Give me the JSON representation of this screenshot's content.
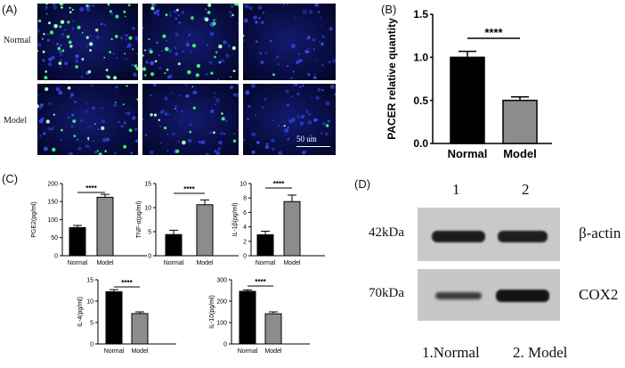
{
  "panels": {
    "a": {
      "label": "(A)",
      "rows": [
        "Normal",
        "Model"
      ],
      "scale_bar": "50 um"
    },
    "b": {
      "label": "(B)"
    },
    "c": {
      "label": "(C)"
    },
    "d": {
      "label": "(D)",
      "lanes": [
        "1",
        "2"
      ],
      "bands": [
        {
          "weight": "42kDa",
          "protein": "β-actin"
        },
        {
          "weight": "70kDa",
          "protein": "COX2"
        }
      ],
      "legend": [
        "1.Normal",
        "2. Model"
      ]
    }
  },
  "chart_data": [
    {
      "type": "bar",
      "categories": [
        "Normal",
        "Model"
      ],
      "values": [
        1.0,
        0.5
      ],
      "errors": [
        0.07,
        0.04
      ],
      "ylabel": "PACER relative quantity",
      "ylim": [
        0,
        1.5
      ],
      "yticks": [
        "0.0",
        "0.5",
        "1.0",
        "1.5"
      ],
      "significance": "****",
      "colors": [
        "#000000",
        "#8c8c8c"
      ]
    },
    {
      "type": "bar",
      "categories": [
        "Normal",
        "Model"
      ],
      "values": [
        78,
        162
      ],
      "errors": [
        6,
        8
      ],
      "ylabel": "PGE2(pg/ml)",
      "ylim": [
        0,
        200
      ],
      "yticks": [
        "0",
        "50",
        "100",
        "150",
        "200"
      ],
      "significance": "****",
      "colors": [
        "#000000",
        "#8c8c8c"
      ]
    },
    {
      "type": "bar",
      "categories": [
        "Normal",
        "Model"
      ],
      "values": [
        4.4,
        10.6
      ],
      "errors": [
        0.9,
        1.0
      ],
      "ylabel": "TNF-α(pg/ml)",
      "ylim": [
        0,
        15
      ],
      "yticks": [
        "0",
        "5",
        "10",
        "15"
      ],
      "significance": "****",
      "colors": [
        "#000000",
        "#8c8c8c"
      ]
    },
    {
      "type": "bar",
      "categories": [
        "Normal",
        "Model"
      ],
      "values": [
        2.9,
        7.5
      ],
      "errors": [
        0.5,
        0.9
      ],
      "ylabel": "IL-1β(pg/ml)",
      "ylim": [
        0,
        10
      ],
      "yticks": [
        "0",
        "2",
        "4",
        "6",
        "8",
        "10"
      ],
      "significance": "****",
      "colors": [
        "#000000",
        "#8c8c8c"
      ]
    },
    {
      "type": "bar",
      "categories": [
        "Normal",
        "Model"
      ],
      "values": [
        12.2,
        7.1
      ],
      "errors": [
        0.5,
        0.4
      ],
      "ylabel": "IL-4(pg/ml)",
      "ylim": [
        0,
        15
      ],
      "yticks": [
        "0",
        "5",
        "10",
        "15"
      ],
      "significance": "****",
      "colors": [
        "#000000",
        "#8c8c8c"
      ]
    },
    {
      "type": "bar",
      "categories": [
        "Normal",
        "Model"
      ],
      "values": [
        246,
        141
      ],
      "errors": [
        7,
        9
      ],
      "ylabel": "IL-10(pg/ml)",
      "ylim": [
        0,
        300
      ],
      "yticks": [
        "0",
        "100",
        "200",
        "300"
      ],
      "significance": "****",
      "colors": [
        "#000000",
        "#8c8c8c"
      ]
    }
  ]
}
